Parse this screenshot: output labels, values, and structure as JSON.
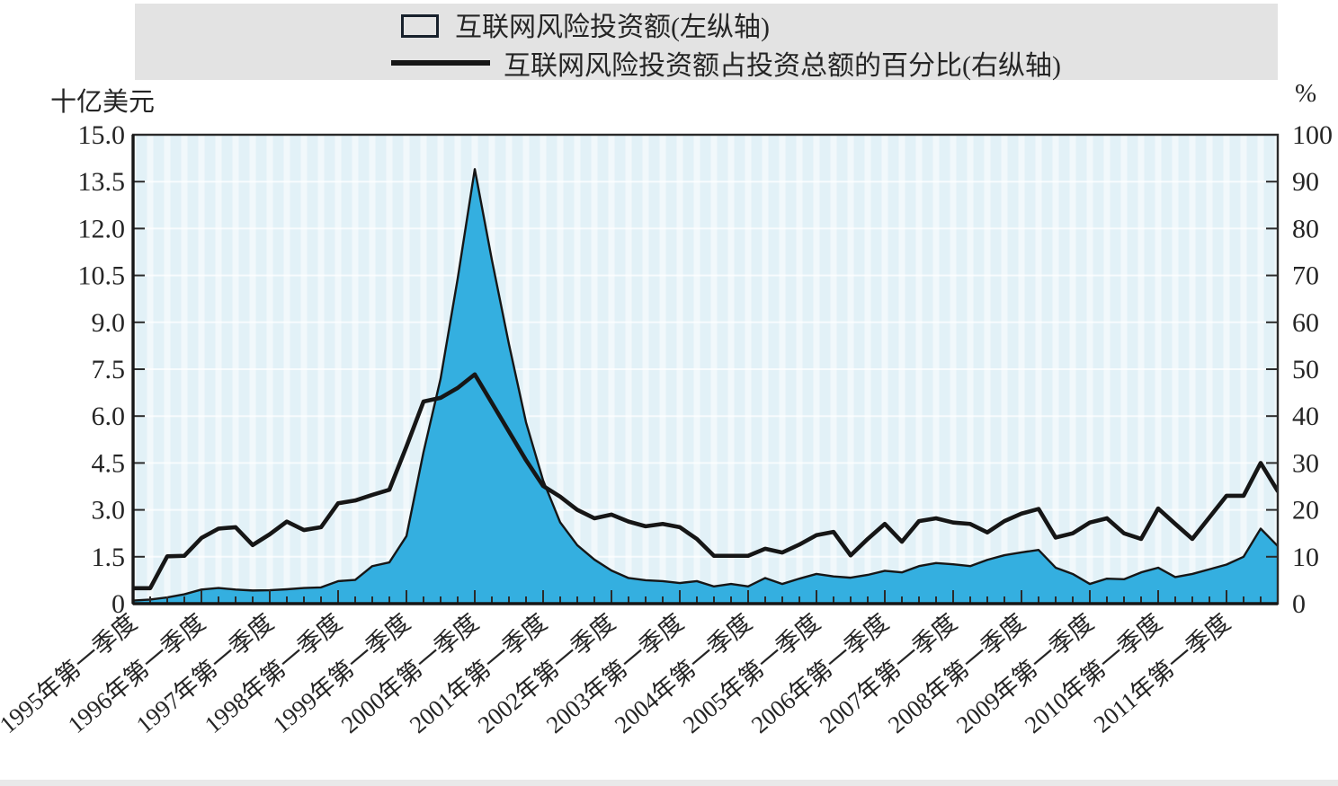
{
  "legend": {
    "area_label": "互联网风险投资额(左纵轴)",
    "line_label": "互联网风险投资额占投资总额的百分比(右纵轴)"
  },
  "colors": {
    "area_fill": "#34afe0",
    "series_line": "#161616",
    "plot_bg": "#e2f1f7",
    "grid_line": "#ffffff",
    "legend_bg": "#e3e3e3",
    "axis": "#2b2b2b"
  },
  "chart_data": {
    "type": "area+line",
    "grid": true,
    "legend_position": "top-center",
    "x": [
      "1995Q1",
      "1995Q2",
      "1995Q3",
      "1995Q4",
      "1996Q1",
      "1996Q2",
      "1996Q3",
      "1996Q4",
      "1997Q1",
      "1997Q2",
      "1997Q3",
      "1997Q4",
      "1998Q1",
      "1998Q2",
      "1998Q3",
      "1998Q4",
      "1999Q1",
      "1999Q2",
      "1999Q3",
      "1999Q4",
      "2000Q1",
      "2000Q2",
      "2000Q3",
      "2000Q4",
      "2001Q1",
      "2001Q2",
      "2001Q3",
      "2001Q4",
      "2002Q1",
      "2002Q2",
      "2002Q3",
      "2002Q4",
      "2003Q1",
      "2003Q2",
      "2003Q3",
      "2003Q4",
      "2004Q1",
      "2004Q2",
      "2004Q3",
      "2004Q4",
      "2005Q1",
      "2005Q2",
      "2005Q3",
      "2005Q4",
      "2006Q1",
      "2006Q2",
      "2006Q3",
      "2006Q4",
      "2007Q1",
      "2007Q2",
      "2007Q3",
      "2007Q4",
      "2008Q1",
      "2008Q2",
      "2008Q3",
      "2008Q4",
      "2009Q1",
      "2009Q2",
      "2009Q3",
      "2009Q4",
      "2010Q1",
      "2010Q2",
      "2010Q3",
      "2010Q4",
      "2011Q1",
      "2011Q2",
      "2011Q3",
      "2011Q4"
    ],
    "x_axis_tick_labels": [
      "1995年第一季度",
      "1996年第一季度",
      "1997年第一季度",
      "1998年第一季度",
      "1999年第一季度",
      "2000年第一季度",
      "2001年第一季度",
      "2002年第一季度",
      "2003年第一季度",
      "2004年第一季度",
      "2005年第一季度",
      "2006年第一季度",
      "2007年第一季度",
      "2008年第一季度",
      "2009年第一季度",
      "2010年第一季度",
      "2011年第一季度"
    ],
    "left_axis": {
      "title": "十亿美元",
      "min": 0,
      "max": 15,
      "tick_labels": [
        "15.0",
        "13.5",
        "12.0",
        "10.5",
        "9.0",
        "7.5",
        "6.0",
        "4.5",
        "3.0",
        "1.5",
        "0"
      ]
    },
    "right_axis": {
      "title": "%",
      "min": 0,
      "max": 100,
      "tick_labels": [
        "100",
        "90",
        "80",
        "70",
        "60",
        "50",
        "40",
        "30",
        "20",
        "10",
        "0"
      ]
    },
    "series": [
      {
        "name": "互联网风险投资额(左纵轴)",
        "type": "area",
        "axis": "left",
        "unit": "十亿美元",
        "values": [
          0.1,
          0.13,
          0.2,
          0.3,
          0.45,
          0.5,
          0.45,
          0.42,
          0.43,
          0.46,
          0.5,
          0.52,
          0.72,
          0.76,
          1.2,
          1.32,
          2.16,
          4.85,
          7.2,
          10.4,
          13.9,
          11.0,
          8.3,
          5.8,
          3.94,
          2.6,
          1.87,
          1.41,
          1.06,
          0.82,
          0.75,
          0.72,
          0.66,
          0.72,
          0.55,
          0.63,
          0.55,
          0.82,
          0.63,
          0.8,
          0.95,
          0.87,
          0.83,
          0.92,
          1.05,
          1.0,
          1.2,
          1.3,
          1.26,
          1.2,
          1.4,
          1.55,
          1.64,
          1.72,
          1.15,
          0.95,
          0.63,
          0.8,
          0.78,
          1.0,
          1.15,
          0.85,
          0.95,
          1.1,
          1.25,
          1.5,
          2.4,
          1.84
        ]
      },
      {
        "name": "互联网风险投资额占投资总额的百分比(右纵轴)",
        "type": "line",
        "axis": "right",
        "unit": "%",
        "values": [
          3.3,
          3.3,
          10.1,
          10.2,
          14.0,
          16.0,
          16.3,
          12.5,
          14.8,
          17.5,
          15.7,
          16.3,
          21.4,
          22.0,
          23.2,
          24.3,
          33.5,
          43.1,
          43.9,
          46.0,
          48.9,
          42.8,
          36.7,
          30.6,
          25.1,
          22.8,
          20.0,
          18.2,
          19.0,
          17.5,
          16.5,
          17.0,
          16.3,
          13.8,
          10.2,
          10.2,
          10.2,
          11.7,
          10.9,
          12.6,
          14.6,
          15.3,
          10.3,
          13.8,
          17.0,
          13.2,
          17.6,
          18.2,
          17.3,
          17.0,
          15.2,
          17.6,
          19.2,
          20.2,
          14.1,
          15.0,
          17.3,
          18.2,
          15.0,
          13.8,
          20.3,
          17.0,
          13.8,
          18.4,
          23.0,
          23.0,
          30.0,
          24.0
        ]
      }
    ]
  }
}
